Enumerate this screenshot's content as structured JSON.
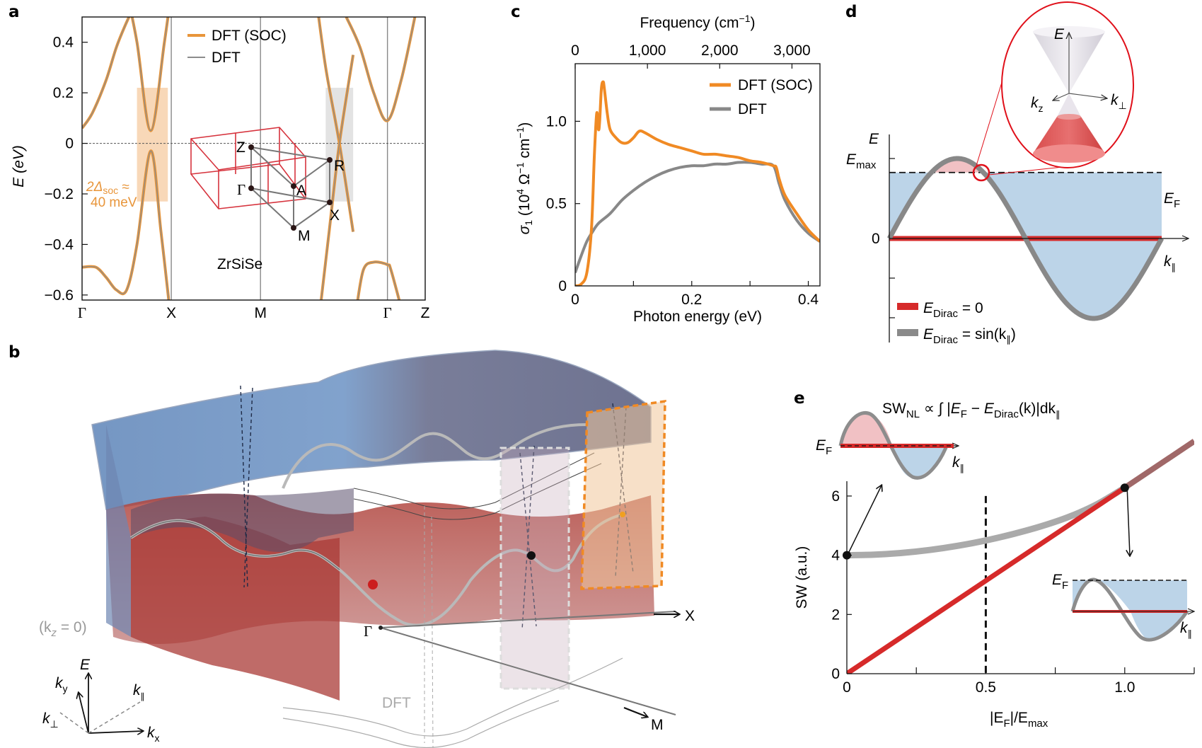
{
  "panel_labels": [
    "a",
    "b",
    "c",
    "d",
    "e"
  ],
  "chart_data": [
    {
      "panel": "a",
      "type": "line",
      "title": "",
      "ylabel": "E (eV)",
      "ylim": [
        -0.62,
        0.5
      ],
      "yticks": [
        "0.4",
        "0.2",
        "0",
        "−0.2",
        "−0.4",
        "−0.6"
      ],
      "ytick_values": [
        0.4,
        0.2,
        0,
        -0.2,
        -0.4,
        -0.6
      ],
      "xticks": [
        "Γ",
        "X",
        "M",
        "Γ",
        "Z"
      ],
      "xtick_positions": [
        0,
        0.26,
        0.52,
        0.89,
        1.0
      ],
      "fermi_level": 0,
      "legend": [
        {
          "name": "DFT (SOC)",
          "color": "#e8953a"
        },
        {
          "name": "DFT",
          "color": "#8c8c8c"
        }
      ],
      "annotation": {
        "line1": "2Δ",
        "sub": "soc",
        "tail": " ≈",
        "line2": "40 meV",
        "color": "#e8953a"
      },
      "material_label": "ZrSiSe",
      "highlight_boxes": [
        {
          "x": [
            0.16,
            0.25
          ],
          "y": [
            -0.23,
            0.22
          ],
          "color": "#f5cba0"
        },
        {
          "x": [
            0.71,
            0.79
          ],
          "y": [
            -0.23,
            0.22
          ],
          "color": "#d9d9d9"
        }
      ],
      "brillouin_zone_points": [
        "Z",
        "R",
        "Γ",
        "A",
        "X",
        "M"
      ],
      "series": [
        {
          "name": "band1",
          "x": [
            0.0,
            0.03,
            0.07,
            0.1,
            0.13,
            0.155
          ],
          "y": [
            0.06,
            0.12,
            0.25,
            0.38,
            0.48,
            0.55
          ]
        },
        {
          "name": "band2",
          "x": [
            0.13,
            0.16,
            0.2,
            0.24,
            0.265
          ],
          "y": [
            0.6,
            0.4,
            0.05,
            0.4,
            0.65
          ]
        },
        {
          "name": "band3",
          "x": [
            0.0,
            0.04,
            0.07,
            0.1,
            0.13,
            0.16,
            0.2,
            0.23,
            0.255
          ],
          "y": [
            -0.49,
            -0.49,
            -0.53,
            -0.58,
            -0.58,
            -0.4,
            -0.03,
            -0.35,
            -0.65
          ]
        },
        {
          "name": "band4",
          "x": [
            0.68,
            0.71,
            0.75,
            0.79
          ],
          "y": [
            0.6,
            0.3,
            0.0,
            -0.35
          ]
        },
        {
          "name": "band5",
          "x": [
            0.69,
            0.72,
            0.75,
            0.79
          ],
          "y": [
            -0.7,
            -0.35,
            0.0,
            0.35
          ]
        },
        {
          "name": "band6",
          "x": [
            0.77,
            0.81,
            0.85,
            0.89,
            0.93,
            0.97
          ],
          "y": [
            0.5,
            0.38,
            0.2,
            0.09,
            0.25,
            0.5
          ]
        },
        {
          "name": "band7",
          "x": [
            0.8,
            0.82,
            0.85,
            0.89,
            0.9,
            0.93
          ],
          "y": [
            -0.65,
            -0.5,
            -0.47,
            -0.48,
            -0.5,
            -0.65
          ]
        }
      ]
    },
    {
      "panel": "c",
      "type": "line",
      "title": "",
      "xlabel": "Photon energy (eV)",
      "ylabel": "σ1 (10^4 Ω^−1 cm^−1)",
      "x2label": "Frequency (cm−1)",
      "xlim": [
        0,
        0.42
      ],
      "ylim": [
        0,
        1.35
      ],
      "xticks": [
        "0",
        "0.2",
        "0.4"
      ],
      "xtick_values": [
        0,
        0.2,
        0.4
      ],
      "x2ticks": [
        "0",
        "1,000",
        "2,000",
        "3,000"
      ],
      "x2tick_values": [
        0,
        1000,
        2000,
        3000
      ],
      "yticks": [
        "0",
        "0.5",
        "1.0"
      ],
      "ytick_values": [
        0,
        0.5,
        1.0
      ],
      "legend_position": "top-right",
      "series": [
        {
          "name": "DFT (SOC)",
          "color": "#f08a24",
          "x": [
            0.0,
            0.01,
            0.02,
            0.028,
            0.033,
            0.037,
            0.04,
            0.042,
            0.045,
            0.048,
            0.05,
            0.055,
            0.06,
            0.07,
            0.08,
            0.09,
            0.1,
            0.11,
            0.12,
            0.14,
            0.16,
            0.18,
            0.2,
            0.22,
            0.24,
            0.26,
            0.28,
            0.3,
            0.32,
            0.34,
            0.345,
            0.35,
            0.36,
            0.38,
            0.4,
            0.42
          ],
          "y": [
            0.0,
            0.01,
            0.08,
            0.35,
            0.8,
            1.05,
            0.95,
            1.0,
            1.2,
            1.24,
            1.2,
            1.05,
            0.95,
            0.9,
            0.87,
            0.87,
            0.9,
            0.94,
            0.93,
            0.89,
            0.86,
            0.84,
            0.82,
            0.8,
            0.8,
            0.79,
            0.78,
            0.76,
            0.75,
            0.73,
            0.72,
            0.65,
            0.55,
            0.44,
            0.34,
            0.27
          ]
        },
        {
          "name": "DFT",
          "color": "#888888",
          "x": [
            0.0,
            0.01,
            0.02,
            0.03,
            0.04,
            0.06,
            0.08,
            0.1,
            0.12,
            0.14,
            0.16,
            0.18,
            0.2,
            0.22,
            0.24,
            0.26,
            0.28,
            0.3,
            0.32,
            0.34,
            0.35,
            0.36,
            0.38,
            0.4,
            0.42
          ],
          "y": [
            0.08,
            0.18,
            0.27,
            0.33,
            0.38,
            0.44,
            0.52,
            0.58,
            0.63,
            0.67,
            0.7,
            0.72,
            0.73,
            0.73,
            0.74,
            0.74,
            0.75,
            0.75,
            0.74,
            0.73,
            0.62,
            0.52,
            0.4,
            0.32,
            0.27
          ]
        }
      ]
    },
    {
      "panel": "d",
      "type": "line",
      "title": "",
      "ylabel": "E",
      "xlabel": "k∥",
      "yticks": [
        "E_max",
        "0"
      ],
      "ef_label": "E_F",
      "ef_value": 0.5,
      "legend": [
        {
          "name": "E_Dirac = 0",
          "color": "#d62a2a"
        },
        {
          "name": "E_Dirac = sin(k∥)",
          "color": "#888888"
        }
      ],
      "inset_labels": {
        "e": "E",
        "kz": "k",
        "kz_sub": "z",
        "kperp": "k",
        "kperp_sub": "⊥"
      },
      "series": [
        {
          "name": "E_Dirac = 0",
          "function": "0",
          "xrange": [
            0,
            6.283
          ]
        },
        {
          "name": "E_Dirac = sin(k∥)",
          "function": "sin(k)",
          "xrange": [
            0,
            6.283
          ]
        }
      ]
    },
    {
      "panel": "e",
      "type": "line",
      "title": "SW_NL ∝ ∫ |E_F − E_Dirac(k)| dk∥",
      "xlabel": "|E_F|/E_max",
      "ylabel": "SW (a.u.)",
      "xlim": [
        0,
        1.25
      ],
      "ylim": [
        0,
        6.5
      ],
      "xticks": [
        "0",
        "0.5",
        "1.0"
      ],
      "xtick_values": [
        0,
        0.5,
        1.0
      ],
      "yticks": [
        "0",
        "2",
        "4",
        "6"
      ],
      "ytick_values": [
        0,
        2,
        4,
        6
      ],
      "vline": 0.5,
      "markers": [
        {
          "x": 0,
          "y": 4.0
        },
        {
          "x": 1.0,
          "y": 6.28
        }
      ],
      "series": [
        {
          "name": "E_Dirac = 0",
          "color": "#d62a2a",
          "x": [
            0,
            1.0
          ],
          "y": [
            0,
            6.28
          ]
        },
        {
          "name": "E_Dirac = sin(k∥)",
          "color": "#aaaaaa",
          "x": [
            0,
            0.1,
            0.2,
            0.3,
            0.4,
            0.5,
            0.6,
            0.7,
            0.8,
            0.9,
            1.0
          ],
          "y": [
            4.0,
            4.02,
            4.08,
            4.18,
            4.32,
            4.5,
            4.72,
            4.98,
            5.3,
            5.72,
            6.28
          ]
        },
        {
          "name": "continuation",
          "color": "#a06868",
          "x": [
            1.0,
            1.25
          ],
          "y": [
            6.28,
            7.85
          ]
        }
      ]
    }
  ],
  "panel_b": {
    "kz_label": "(k",
    "kz_sub": "z",
    "kz_tail": " = 0)",
    "gamma_label": "Γ",
    "x_label": "X",
    "m_label": "M",
    "dft_label": "DFT",
    "axes": {
      "e": "E",
      "ky": "k",
      "ky_sub": "y",
      "kx": "k",
      "kx_sub": "x",
      "kpar": "k",
      "kpar_sub": "∥",
      "kperp": "k",
      "kperp_sub": "⊥"
    }
  },
  "labels_d": {
    "e": "E",
    "emax": "E",
    "emax_sub": "max",
    "zero": "0",
    "ef": "E",
    "ef_sub": "F",
    "k": "k",
    "k_sub": "∥",
    "leg1": "E",
    "leg1_sub": "Dirac",
    "leg1_tail": " = 0",
    "leg2": "E",
    "leg2_sub": "Dirac",
    "leg2_tail": " = sin(k",
    "leg2_tail2": "∥",
    "leg2_tail3": ")"
  },
  "labels_e": {
    "title_sw": "SW",
    "title_nl": "NL",
    "title_mid": " ∝ ∫ |",
    "ef": "E",
    "f": "F",
    "minus": " − ",
    "ed": "E",
    "dirac": "Dirac",
    "k": "(k)|dk",
    "par": "∥",
    "ylabel": "SW (a.u.)",
    "xlabel_a": "|E",
    "xlabel_f": "F",
    "xlabel_b": "|/E",
    "xlabel_max": "max",
    "inset_ef": "E",
    "inset_f": "F",
    "inset_k": "k",
    "inset_par": "∥"
  }
}
